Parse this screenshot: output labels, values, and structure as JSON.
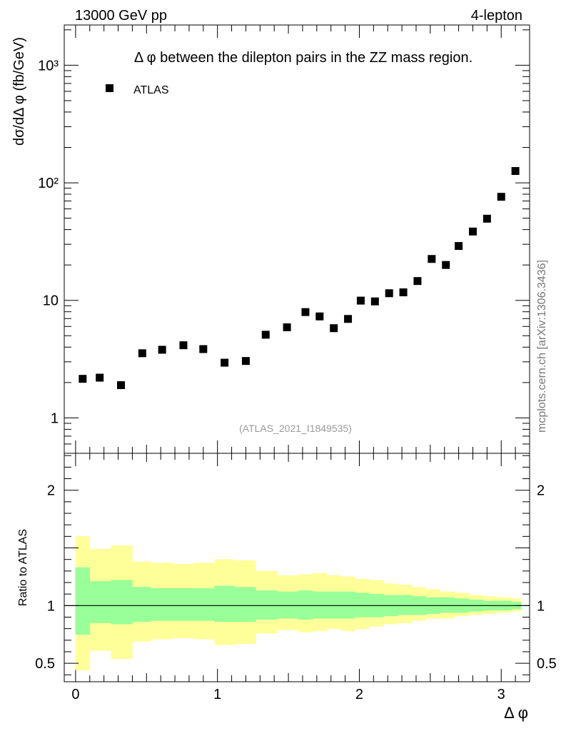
{
  "header": {
    "left": "13000 GeV pp",
    "right": "4-lepton"
  },
  "side_label": "mcplots.cern.ch [arXiv:1306.3436]",
  "chart_data": [
    {
      "type": "scatter",
      "title": "Δ φ between the dilepton pairs in the ZZ mass region.",
      "ylabel": "dσ/dΔ φ (fb/GeV)",
      "yscale": "log",
      "xlim": [
        -0.08,
        3.2
      ],
      "ylim": [
        0.5,
        2200
      ],
      "yticklabels": [
        "1",
        "10",
        "10²",
        "10³"
      ],
      "legend": "top-left",
      "watermark": "(ATLAS_2021_I1849535)",
      "series": [
        {
          "name": "ATLAS",
          "x": [
            0.05,
            0.17,
            0.32,
            0.47,
            0.61,
            0.76,
            0.9,
            1.05,
            1.2,
            1.34,
            1.49,
            1.62,
            1.72,
            1.82,
            1.92,
            2.01,
            2.11,
            2.21,
            2.31,
            2.41,
            2.51,
            2.61,
            2.7,
            2.8,
            2.9,
            3.0,
            3.1
          ],
          "y": [
            2.15,
            2.2,
            1.9,
            3.55,
            3.8,
            4.15,
            3.85,
            2.95,
            3.05,
            5.1,
            5.9,
            7.95,
            7.3,
            5.8,
            6.95,
            9.95,
            9.8,
            11.5,
            11.7,
            14.6,
            22.5,
            20.0,
            29.0,
            38.5,
            49.5,
            76.0,
            126.0
          ]
        }
      ]
    },
    {
      "type": "area",
      "ylabel": "Ratio to ATLAS",
      "xlabel": "Δ φ",
      "xlim": [
        -0.08,
        3.2
      ],
      "ylim": [
        0.34,
        2.32
      ],
      "xticklabels": [
        "0",
        "1",
        "2",
        "3"
      ],
      "yticklabels": [
        "0.5",
        "1",
        "2"
      ],
      "reference_line": 1,
      "bins": [
        0.0,
        0.1,
        0.25,
        0.4,
        0.53,
        0.68,
        0.83,
        0.98,
        1.12,
        1.27,
        1.42,
        1.57,
        1.67,
        1.77,
        1.87,
        1.97,
        2.07,
        2.17,
        2.27,
        2.37,
        2.47,
        2.57,
        2.67,
        2.77,
        2.87,
        2.97,
        3.07,
        3.14
      ],
      "series": [
        {
          "name": "yellow band",
          "low": [
            0.44,
            0.61,
            0.54,
            0.69,
            0.71,
            0.72,
            0.71,
            0.66,
            0.67,
            0.76,
            0.79,
            0.77,
            0.78,
            0.8,
            0.78,
            0.8,
            0.82,
            0.84,
            0.85,
            0.87,
            0.89,
            0.89,
            0.91,
            0.92,
            0.93,
            0.94,
            0.95
          ],
          "high": [
            1.6,
            1.49,
            1.52,
            1.38,
            1.37,
            1.36,
            1.37,
            1.4,
            1.39,
            1.3,
            1.26,
            1.27,
            1.28,
            1.26,
            1.25,
            1.23,
            1.22,
            1.19,
            1.18,
            1.16,
            1.14,
            1.12,
            1.11,
            1.09,
            1.08,
            1.07,
            1.06
          ]
        },
        {
          "name": "green band",
          "low": [
            0.75,
            0.85,
            0.84,
            0.86,
            0.87,
            0.87,
            0.87,
            0.86,
            0.86,
            0.88,
            0.89,
            0.88,
            0.89,
            0.89,
            0.89,
            0.9,
            0.9,
            0.91,
            0.92,
            0.92,
            0.93,
            0.94,
            0.94,
            0.95,
            0.96,
            0.96,
            0.97
          ],
          "high": [
            1.33,
            1.21,
            1.22,
            1.16,
            1.15,
            1.15,
            1.15,
            1.17,
            1.16,
            1.13,
            1.12,
            1.13,
            1.12,
            1.12,
            1.12,
            1.11,
            1.1,
            1.09,
            1.09,
            1.08,
            1.07,
            1.07,
            1.06,
            1.05,
            1.04,
            1.04,
            1.03
          ]
        }
      ]
    }
  ]
}
